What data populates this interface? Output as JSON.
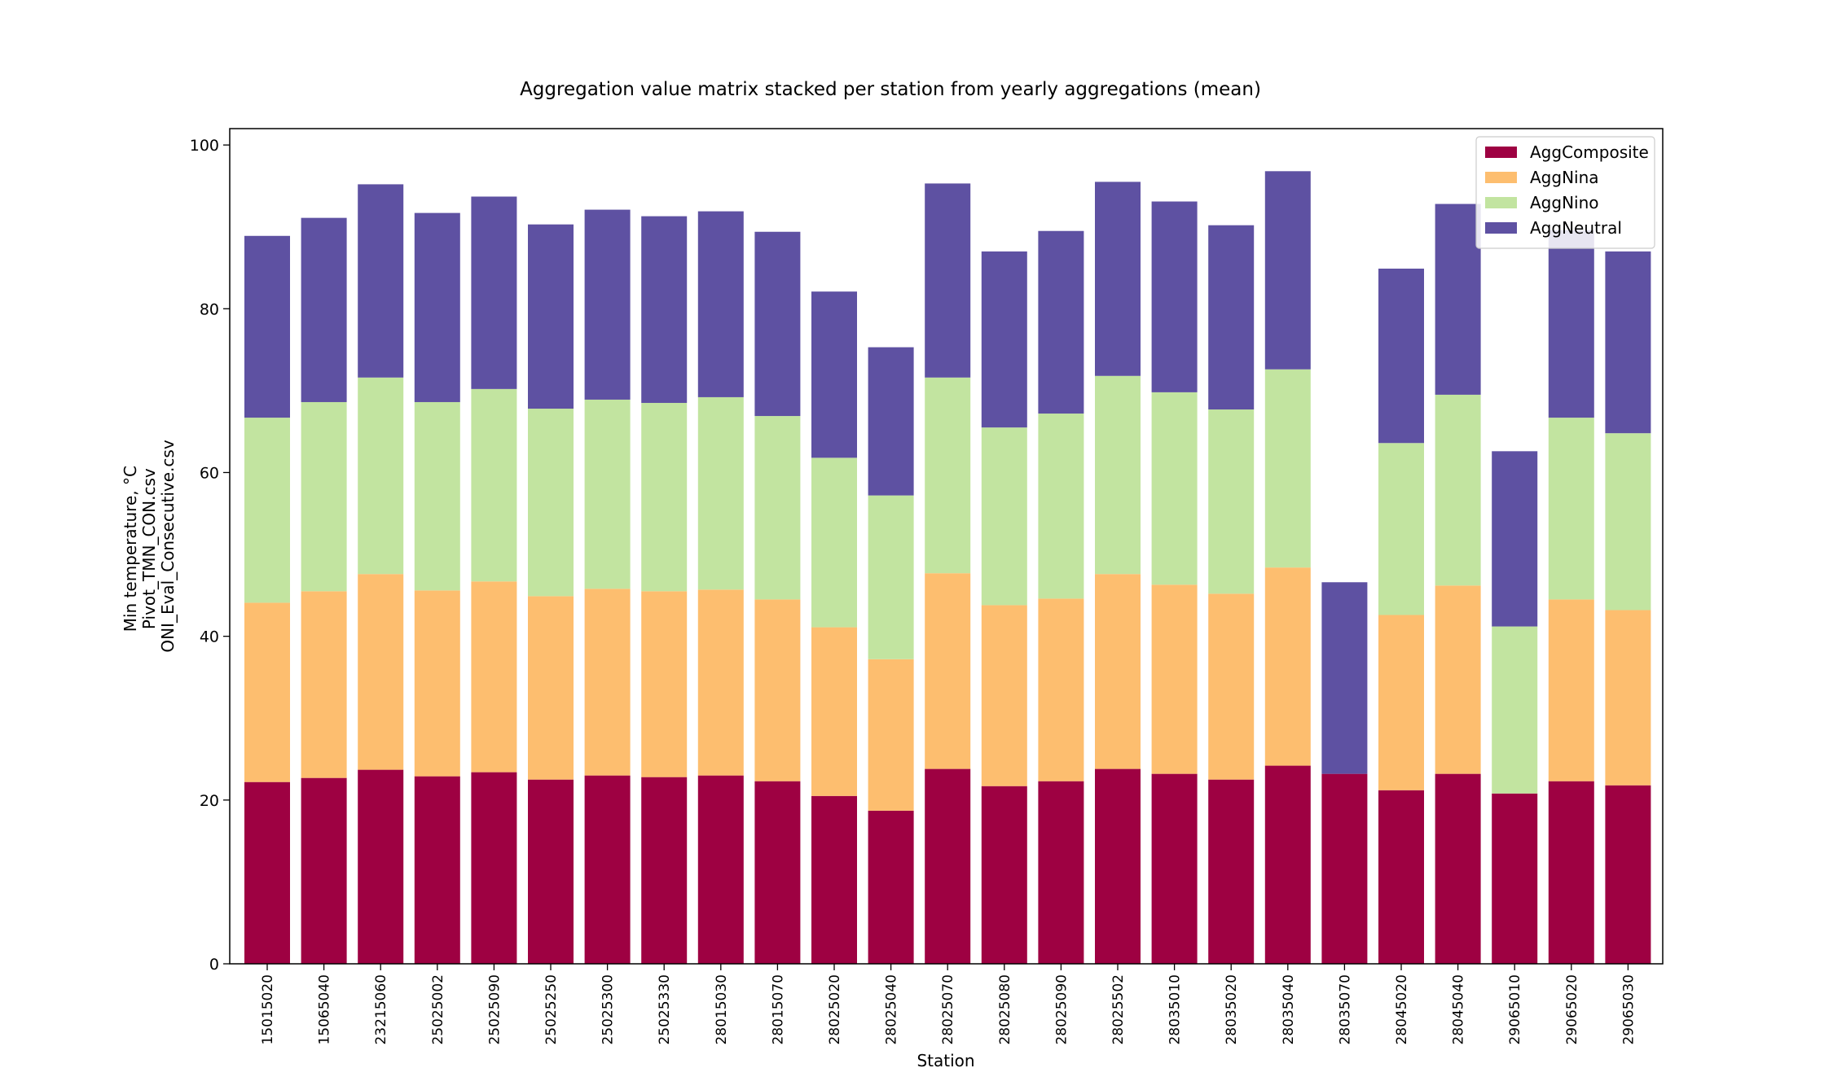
{
  "chart_data": {
    "type": "bar",
    "stacked": true,
    "title": "Aggregation value matrix stacked per station from yearly aggregations (mean)",
    "xlabel": "Station",
    "ylabel_lines": [
      "Min temperature, °C",
      "Pivot_TMN_CON.csv",
      "ONI_Eval_Consecutive.csv"
    ],
    "ylim": [
      0,
      102
    ],
    "yticks": [
      0,
      20,
      40,
      60,
      80,
      100
    ],
    "grid": false,
    "legend_position": "top-right",
    "categories": [
      "15015020",
      "15065040",
      "23215060",
      "25025002",
      "25025090",
      "25025250",
      "25025300",
      "25025330",
      "28015030",
      "28015070",
      "28025020",
      "28025040",
      "28025070",
      "28025080",
      "28025090",
      "28025502",
      "28035010",
      "28035020",
      "28035040",
      "28035070",
      "28045020",
      "28045040",
      "29065010",
      "29065020",
      "29065030"
    ],
    "series": [
      {
        "name": "AggComposite",
        "color": "#9e0142",
        "values": [
          22.2,
          22.7,
          23.7,
          22.9,
          23.4,
          22.5,
          23.0,
          22.8,
          23.0,
          22.3,
          20.5,
          18.7,
          23.8,
          21.7,
          22.3,
          23.8,
          23.2,
          22.5,
          24.2,
          23.2,
          21.2,
          23.2,
          20.8,
          22.3,
          21.8
        ]
      },
      {
        "name": "AggNina",
        "color": "#fdbe6f",
        "values": [
          21.9,
          22.8,
          23.9,
          22.7,
          23.3,
          22.4,
          22.8,
          22.7,
          22.7,
          22.2,
          20.6,
          18.5,
          23.9,
          22.1,
          22.3,
          23.8,
          23.1,
          22.7,
          24.2,
          0,
          21.4,
          23.0,
          0,
          22.2,
          21.4
        ]
      },
      {
        "name": "AggNino",
        "color": "#c2e4a0",
        "values": [
          22.6,
          23.1,
          24.0,
          23.0,
          23.5,
          22.9,
          23.1,
          23.0,
          23.5,
          22.4,
          20.7,
          20.0,
          23.9,
          21.7,
          22.6,
          24.2,
          23.5,
          22.5,
          24.2,
          0,
          21.0,
          23.3,
          20.4,
          22.2,
          21.6
        ]
      },
      {
        "name": "AggNeutral",
        "color": "#5e51a2",
        "values": [
          22.2,
          22.5,
          23.6,
          23.1,
          23.5,
          22.5,
          23.2,
          22.8,
          22.7,
          22.5,
          20.3,
          18.1,
          23.7,
          21.5,
          22.3,
          23.7,
          23.3,
          22.5,
          24.2,
          23.4,
          21.3,
          23.3,
          21.4,
          22.9,
          22.2
        ]
      }
    ]
  }
}
